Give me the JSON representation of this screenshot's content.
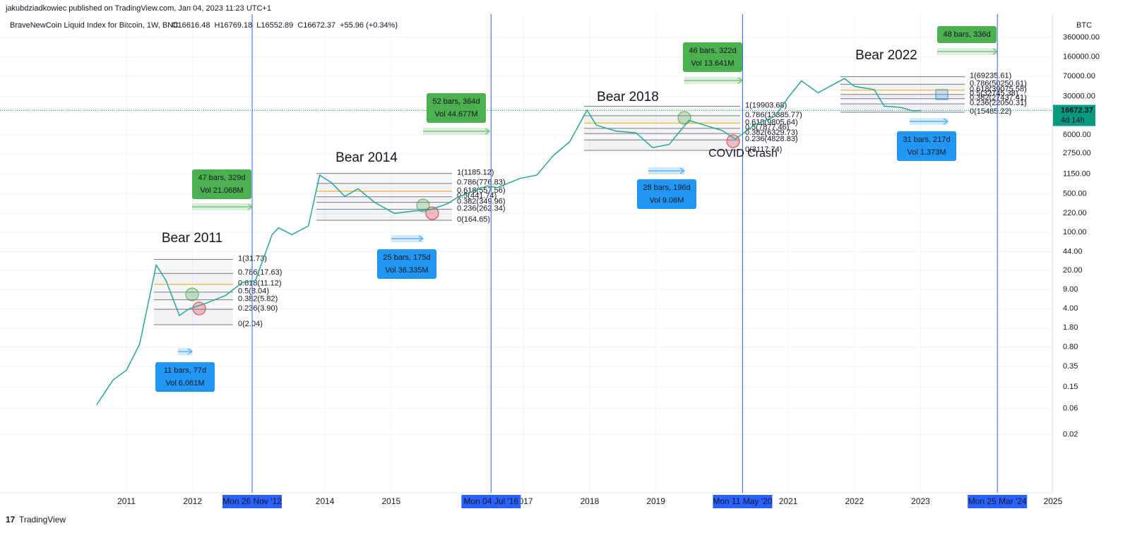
{
  "header": {
    "publisher": "jakubdziadkowiec published on TradingView.com, Jan 04, 2023 11:23 UTC+1",
    "footer": "TradingView"
  },
  "chart_data": {
    "type": "line",
    "title": "BraveNewCoin Liquid Index for Bitcoin, 1W, BNC",
    "legend_values": [
      "O16616.48",
      "H16769.18",
      "L16552.89",
      "C16672.37",
      "+55.96 (+0.34%)"
    ],
    "y_axis_label": "BTC",
    "log_scale": true,
    "grid": true,
    "last_price": 16672.37,
    "countdown": "4d 14h",
    "xlim": [
      2009.09,
      2024.99
    ],
    "xticks": [
      2011,
      2012,
      2014,
      2015,
      2017,
      2018,
      2019,
      2021,
      2022,
      2023,
      2025
    ],
    "ylim": [
      0.0019,
      960000
    ],
    "yticks": [
      {
        "value": 360000,
        "label": "360000.00"
      },
      {
        "value": 160000,
        "label": "160000.00"
      },
      {
        "value": 70000,
        "label": "70000.00"
      },
      {
        "value": 30000,
        "label": "30000.00"
      },
      {
        "value": 6000,
        "label": "6000.00"
      },
      {
        "value": 2750,
        "label": "2750.00"
      },
      {
        "value": 1150,
        "label": "1150.00"
      },
      {
        "value": 500,
        "label": "500.00"
      },
      {
        "value": 220,
        "label": "220.00"
      },
      {
        "value": 100,
        "label": "100.00"
      },
      {
        "value": 44,
        "label": "44.00"
      },
      {
        "value": 20,
        "label": "20.00"
      },
      {
        "value": 9,
        "label": "9.00"
      },
      {
        "value": 4,
        "label": "4.00"
      },
      {
        "value": 1.8,
        "label": "1.80"
      },
      {
        "value": 0.8,
        "label": "0.80"
      },
      {
        "value": 0.35,
        "label": "0.35"
      },
      {
        "value": 0.15,
        "label": "0.15"
      },
      {
        "value": 0.06,
        "label": "0.06"
      },
      {
        "value": 0.02,
        "label": "0.02"
      }
    ],
    "series": [
      {
        "name": "BTC",
        "color": "#26a69a",
        "x": [
          2010.55,
          2010.8,
          2011.0,
          2011.2,
          2011.45,
          2011.6,
          2011.8,
          2011.95,
          2012.2,
          2012.5,
          2012.75,
          2012.95,
          2013.2,
          2013.3,
          2013.5,
          2013.75,
          2013.92,
          2014.1,
          2014.3,
          2014.5,
          2014.75,
          2015.05,
          2015.3,
          2015.6,
          2015.85,
          2016.0,
          2016.45,
          2016.6,
          2016.95,
          2017.2,
          2017.45,
          2017.7,
          2017.96,
          2018.1,
          2018.4,
          2018.7,
          2018.95,
          2019.2,
          2019.5,
          2019.8,
          2020.0,
          2020.2,
          2020.5,
          2020.8,
          2021.0,
          2021.2,
          2021.45,
          2021.6,
          2021.85,
          2022.0,
          2022.3,
          2022.45,
          2022.7,
          2022.88,
          2023.01
        ],
        "values": [
          0.07,
          0.2,
          0.3,
          0.9,
          25,
          13,
          3,
          4,
          5,
          7,
          12,
          13,
          90,
          120,
          90,
          130,
          1100,
          800,
          450,
          620,
          350,
          220,
          240,
          260,
          330,
          430,
          700,
          650,
          960,
          1100,
          2500,
          4500,
          17000,
          9000,
          7000,
          6500,
          3500,
          4000,
          11000,
          8500,
          7200,
          5000,
          9200,
          13000,
          29000,
          58000,
          35000,
          44000,
          64000,
          46000,
          40000,
          20000,
          19000,
          16500,
          16672.37
        ]
      }
    ],
    "date_markers": [
      {
        "value": 2012.9,
        "label": "Mon 26 Nov '12"
      },
      {
        "value": 2016.51,
        "label": "Mon 04 Jul '16"
      },
      {
        "value": 2020.31,
        "label": "Mon 11 May '20"
      },
      {
        "value": 2024.16,
        "label": "Mon 25 Mar '24"
      }
    ],
    "annotations": [
      "Bear 2011",
      "Bear 2014",
      "Bear 2018",
      "Bear 2022",
      "COVID Crash"
    ],
    "fibs": [
      {
        "levels": [
          {
            "label": "1(31.73)",
            "price": 31.73,
            "color": "#787b86"
          },
          {
            "label": "0.786(17.63)",
            "price": 17.63,
            "color": "#787b86"
          },
          {
            "label": "0.618(11.12)",
            "price": 11.12,
            "color": "#f7a600"
          },
          {
            "label": "0.5(8.04)",
            "price": 8.04,
            "color": "#787b86"
          },
          {
            "label": "0.382(5.82)",
            "price": 5.82,
            "color": "#787b86"
          },
          {
            "label": "0.236(3.90)",
            "price": 3.9,
            "color": "#787b86"
          },
          {
            "label": "0(2.04)",
            "price": 2.04,
            "color": "#787b86"
          }
        ]
      },
      {
        "levels": [
          {
            "label": "1(1185.12)",
            "price": 1185.12,
            "color": "#787b86"
          },
          {
            "label": "0.786(776.83)",
            "price": 776.83,
            "color": "#787b86"
          },
          {
            "label": "0.618(557.56)",
            "price": 557.56,
            "color": "#f7a600"
          },
          {
            "label": "0.5(441.74)",
            "price": 441.74,
            "color": "#787b86"
          },
          {
            "label": "0.382(349.96)",
            "price": 349.96,
            "color": "#787b86"
          },
          {
            "label": "0.236(262.34)",
            "price": 262.34,
            "color": "#787b86"
          },
          {
            "label": "0(164.65)",
            "price": 164.65,
            "color": "#787b86"
          }
        ]
      },
      {
        "levels": [
          {
            "label": "1(19903.68)",
            "price": 19903.68,
            "color": "#787b86"
          },
          {
            "label": "0.786(13385.77)",
            "price": 13385.77,
            "color": "#787b86"
          },
          {
            "label": "0.618(9805.64)",
            "price": 9805.64,
            "color": "#f7a600"
          },
          {
            "label": "0.5(7877.46)",
            "price": 7877.46,
            "color": "#787b86"
          },
          {
            "label": "0.382(6329.73)",
            "price": 6329.73,
            "color": "#787b86"
          },
          {
            "label": "0.236(4828.83)",
            "price": 4828.83,
            "color": "#787b86"
          },
          {
            "label": "0(3117.74)",
            "price": 3117.74,
            "color": "#787b86"
          }
        ]
      },
      {
        "levels": [
          {
            "label": "1(69235.61)",
            "price": 69235.61,
            "color": "#787b86"
          },
          {
            "label": "0.786(50250.61)",
            "price": 50250.61,
            "color": "#787b86"
          },
          {
            "label": "0.618(39075.58)",
            "price": 39075.58,
            "color": "#f7a600"
          },
          {
            "label": "0.5(32745.38)",
            "price": 32745.38,
            "color": "#787b86"
          },
          {
            "label": "0.382(27437.41)",
            "price": 27437.41,
            "color": "#787b86"
          },
          {
            "label": "0.236(22050.31)",
            "price": 22050.31,
            "color": "#787b86"
          },
          {
            "label": "0(15485.22)",
            "price": 15485.22,
            "color": "#787b86"
          }
        ]
      }
    ],
    "measures": [
      {
        "lines": [
          "47 bars, 329d",
          "Vol 21.068M"
        ],
        "color": "#4caf50"
      },
      {
        "lines": [
          "52 bars, 364d",
          "Vol 44.677M"
        ],
        "color": "#4caf50"
      },
      {
        "lines": [
          "46 bars, 322d",
          "Vol 13.641M"
        ],
        "color": "#4caf50"
      },
      {
        "lines": [
          "48 bars, 336d"
        ],
        "color": "#4caf50"
      },
      {
        "lines": [
          "11 bars, 77d",
          "Vol 6.061M"
        ],
        "color": "#2196f3"
      },
      {
        "lines": [
          "25 bars, 175d",
          "Vol 36.335M"
        ],
        "color": "#2196f3"
      },
      {
        "lines": [
          "28 bars, 196d",
          "Vol 9.08M"
        ],
        "color": "#2196f3"
      },
      {
        "lines": [
          "31 bars, 217d",
          "Vol 1.373M"
        ],
        "color": "#2196f3"
      }
    ]
  }
}
